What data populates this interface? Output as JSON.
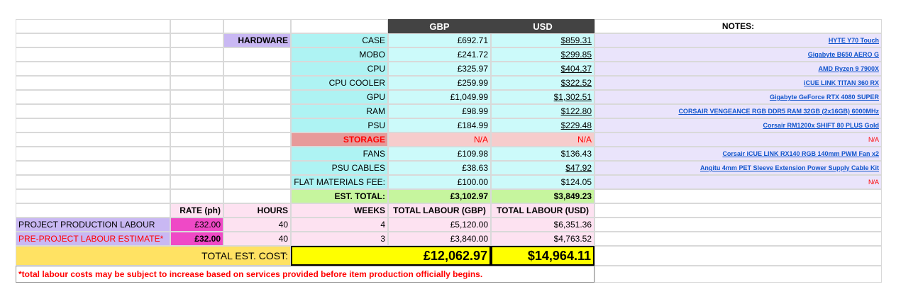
{
  "headers": {
    "gbp": "GBP",
    "usd": "USD",
    "notes": "NOTES:"
  },
  "hardware_label": "HARDWARE",
  "hardware": [
    {
      "name": "CASE",
      "gbp": "£692.71",
      "usd": "$859.31",
      "note": "HYTE Y70 Touch"
    },
    {
      "name": "MOBO",
      "gbp": "£241.72",
      "usd": "$299.85",
      "note": "Gigabyte B650 AERO G"
    },
    {
      "name": "CPU",
      "gbp": "£325.97",
      "usd": "$404.37",
      "note": "AMD Ryzen 9 7900X"
    },
    {
      "name": "CPU COOLER",
      "gbp": "£259.99",
      "usd": "$322.52",
      "note": "iCUE LINK TITAN 360 RX"
    },
    {
      "name": "GPU",
      "gbp": "£1,049.99",
      "usd": "$1,302.51",
      "note": "Gigabyte GeForce RTX 4080 SUPER"
    },
    {
      "name": "RAM",
      "gbp": "£98.99",
      "usd": "$122.80",
      "note": "CORSAIR VENGEANCE RGB DDR5 RAM 32GB (2x16GB) 6000MHz"
    },
    {
      "name": "PSU",
      "gbp": "£184.99",
      "usd": "$229.48",
      "note": "Corsair RM1200x SHIFT 80 PLUS Gold"
    },
    {
      "name": "STORAGE",
      "gbp": "N/A",
      "usd": "N/A",
      "note": "N/A"
    },
    {
      "name": "FANS",
      "gbp": "£109.98",
      "usd": "$136.43",
      "note": "Corsair iCUE LINK RX140 RGB 140mm PWM Fan x2"
    },
    {
      "name": "PSU CABLES",
      "gbp": "£38.63",
      "usd": "$47.92",
      "note": "Angitu 4mm PET Sleeve Extension Power Supply Cable Kit"
    },
    {
      "name": "FLAT MATERIALS FEE:",
      "gbp": "£100.00",
      "usd": "$124.05",
      "note": "N/A"
    }
  ],
  "est_total": {
    "label": "EST. TOTAL:",
    "gbp": "£3,102.97",
    "usd": "$3,849.23"
  },
  "labour_headers": {
    "rate": "RATE (ph)",
    "hours": "HOURS",
    "weeks": "WEEKS",
    "total_gbp": "TOTAL LABOUR (GBP)",
    "total_usd": "TOTAL LABOUR (USD)"
  },
  "labour": [
    {
      "label": "PROJECT PRODUCTION LABOUR",
      "rate": "£32.00",
      "hours": "40",
      "weeks": "4",
      "gbp": "£5,120.00",
      "usd": "$6,351.36"
    },
    {
      "label": "PRE-PROJECT LABOUR ESTIMATE*",
      "rate": "£32.00",
      "hours": "40",
      "weeks": "3",
      "gbp": "£3,840.00",
      "usd": "$4,763.52"
    }
  ],
  "total_cost": {
    "label": "TOTAL EST. COST:",
    "gbp": "£12,062.97",
    "usd": "$14,964.11"
  },
  "footnote": "*total labour costs may be subject to increase based on services provided before item production officially begins.",
  "colors": {
    "header_bg": "#434343",
    "cyan": "#ccfafa",
    "purple": "#c9b8f3",
    "pink_hot": "#ef49c6",
    "yellow": "#ffff00",
    "gold": "#ffe263",
    "link": "#1155cc",
    "alert": "#ff0000"
  }
}
